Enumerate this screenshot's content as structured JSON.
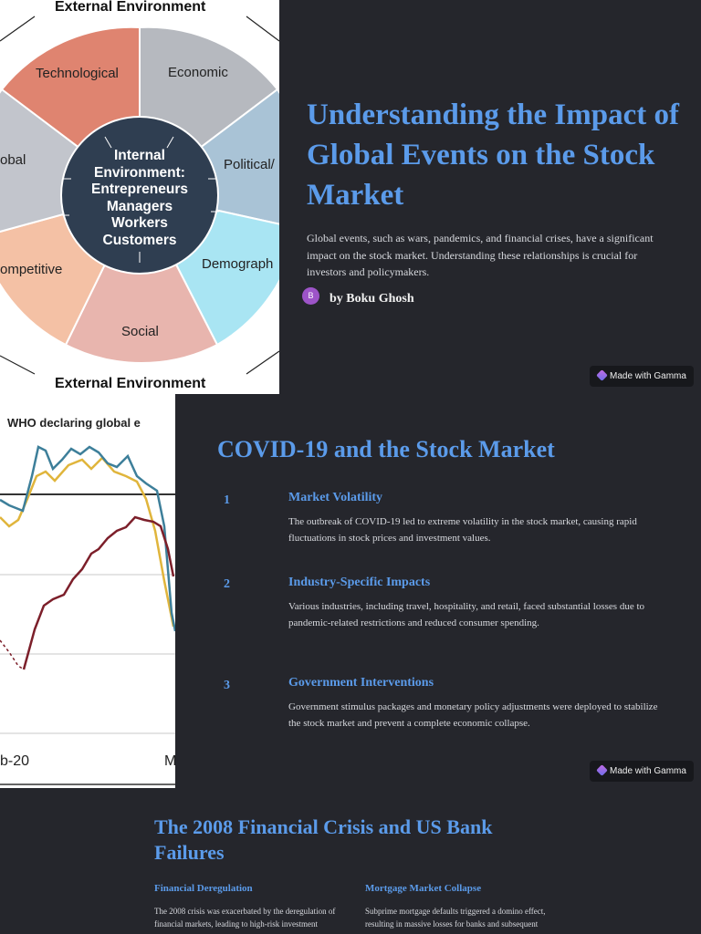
{
  "slide1": {
    "wheel": {
      "top_title": "External Environment",
      "bottom_title": "External Environment",
      "segments": [
        "Technological",
        "Economic",
        "Political/",
        "Demograph",
        "Social",
        "ompetitive",
        "obal"
      ],
      "core_lines": [
        "Internal",
        "Environment:",
        "Entrepreneurs",
        "Managers",
        "Workers",
        "Customers"
      ],
      "colors": {
        "technological": "#df8470",
        "economic": "#b6b9bf",
        "political": "#a9c3d6",
        "demographic": "#a9e5f3",
        "social": "#e8b5ae",
        "competitive": "#f4c1a5",
        "global": "#c2c5cc",
        "core": "#2f3e51"
      }
    },
    "title": "Understanding the Impact of Global Events on the Stock Market",
    "description": "Global events, such as wars, pandemics, and financial crises, have a significant impact on the stock market. Understanding these relationships is crucial for investors and policymakers.",
    "avatar_initial": "B",
    "author": "by Boku Ghosh",
    "badge": "Made with Gamma"
  },
  "slide2": {
    "chart": {
      "header": "WHO declaring global e",
      "x_labels": [
        "b-20",
        "M"
      ],
      "colors": {
        "teal": "#3d7f9a",
        "gold": "#e0b53c",
        "maroon": "#7c1f2a"
      }
    },
    "title": "COVID-19 and the Stock Market",
    "points": [
      {
        "number": "1",
        "title": "Market Volatility",
        "text": "The outbreak of COVID-19 led to extreme volatility in the stock market, causing rapid fluctuations in stock prices and investment values."
      },
      {
        "number": "2",
        "title": "Industry-Specific Impacts",
        "text": "Various industries, including travel, hospitality, and retail, faced substantial losses due to pandemic-related restrictions and reduced consumer spending."
      },
      {
        "number": "3",
        "title": "Government Interventions",
        "text": "Government stimulus packages and monetary policy adjustments were deployed to stabilize the stock market and prevent a complete economic collapse."
      }
    ],
    "badge": "Made with Gamma"
  },
  "slide3": {
    "title": "The 2008 Financial Crisis and US Bank Failures",
    "columns": [
      {
        "title": "Financial Deregulation",
        "text": "The 2008 crisis was exacerbated by the deregulation of financial markets, leading to high-risk investment"
      },
      {
        "title": "Mortgage Market Collapse",
        "text": "Subprime mortgage defaults triggered a domino effect, resulting in massive losses for banks and subsequent"
      }
    ]
  }
}
